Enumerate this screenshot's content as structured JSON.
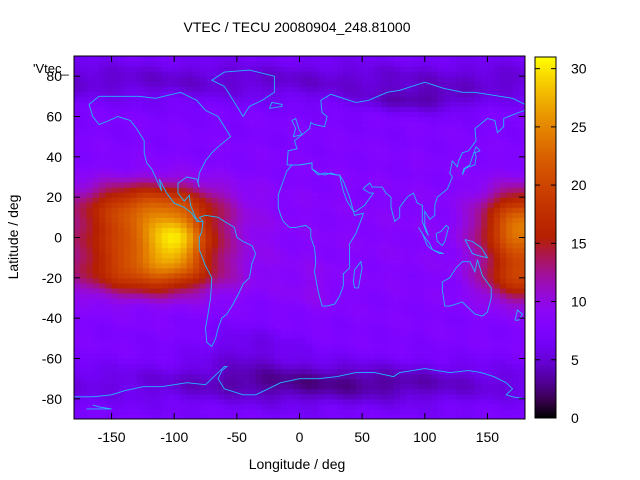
{
  "chart_data": {
    "type": "heatmap",
    "title": "VTEC / TECU 20080904_248.81000",
    "xlabel": "Longitude / deg",
    "ylabel": "Latitude / deg",
    "series_label": "'Vtec_",
    "xlim": [
      -180,
      180
    ],
    "ylim": [
      -90,
      90
    ],
    "xticks": [
      -150,
      -100,
      -50,
      0,
      50,
      100,
      150
    ],
    "yticks": [
      -80,
      -60,
      -40,
      -20,
      0,
      20,
      40,
      60,
      80
    ],
    "colorbar": {
      "range": [
        0,
        31
      ],
      "ticks": [
        0,
        5,
        10,
        15,
        20,
        25,
        30
      ],
      "palette": "gnuplot-rgbformulae-7-5-15"
    },
    "features": [
      {
        "name": "equatorial-anomaly-americas",
        "lon": -100,
        "lat": 0,
        "peak_tecu": 29
      },
      {
        "name": "equatorial-anomaly-pacific-west",
        "lon": 170,
        "lat": -5,
        "peak_tecu": 20
      },
      {
        "name": "polar-minimum-south",
        "lon": 20,
        "lat": -70,
        "peak_tecu": 2
      },
      {
        "name": "polar-minimum-north",
        "lon": 60,
        "lat": 80,
        "peak_tecu": 3
      }
    ]
  }
}
